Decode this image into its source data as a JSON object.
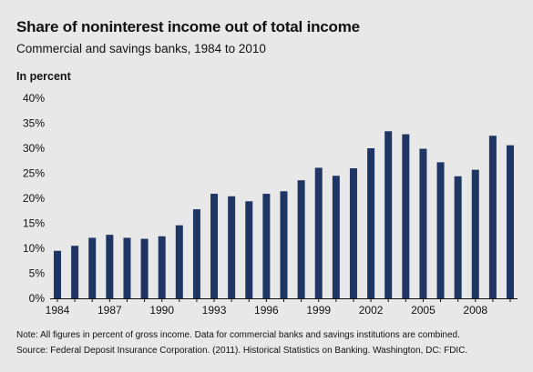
{
  "title": "Share of noninterest income out of total income",
  "subtitle": "Commercial and savings banks, 1984 to 2010",
  "unit_label": "In percent",
  "note": "Note: All figures in percent of gross income. Data for commercial banks and savings institutions are combined.",
  "source": "Source: Federal Deposit Insurance Corporation. (2011). Historical Statistics on Banking. Washington, DC: FDIC.",
  "colors": {
    "bar": "#1f3563",
    "background": "#e8e8e8",
    "axis": "#111111"
  },
  "chart_data": {
    "type": "bar",
    "title": "Share of noninterest income out of total income",
    "subtitle": "Commercial and savings banks, 1984 to 2010",
    "ylabel": "In percent",
    "xlabel": "",
    "ylim": [
      0,
      40
    ],
    "yticks": [
      0,
      5,
      10,
      15,
      20,
      25,
      30,
      35,
      40
    ],
    "ytick_labels": [
      "0%",
      "5%",
      "10%",
      "15%",
      "20%",
      "25%",
      "30%",
      "35%",
      "40%"
    ],
    "categories": [
      "1984",
      "1985",
      "1986",
      "1987",
      "1988",
      "1989",
      "1990",
      "1991",
      "1992",
      "1993",
      "1994",
      "1995",
      "1996",
      "1997",
      "1998",
      "1999",
      "2000",
      "2001",
      "2002",
      "2003",
      "2004",
      "2005",
      "2006",
      "2007",
      "2008",
      "2009",
      "2010"
    ],
    "xtick_labels": [
      "1984",
      "1987",
      "1990",
      "1993",
      "1996",
      "1999",
      "2002",
      "2005",
      "2008"
    ],
    "values": [
      9.5,
      10.5,
      12.1,
      12.7,
      12.1,
      11.9,
      12.4,
      14.6,
      17.8,
      20.9,
      20.4,
      19.4,
      20.9,
      21.4,
      23.6,
      26.1,
      24.5,
      26.0,
      30.0,
      33.4,
      32.8,
      29.9,
      27.2,
      24.4,
      25.7,
      32.5,
      30.6
    ],
    "grid": false,
    "legend": "none"
  }
}
